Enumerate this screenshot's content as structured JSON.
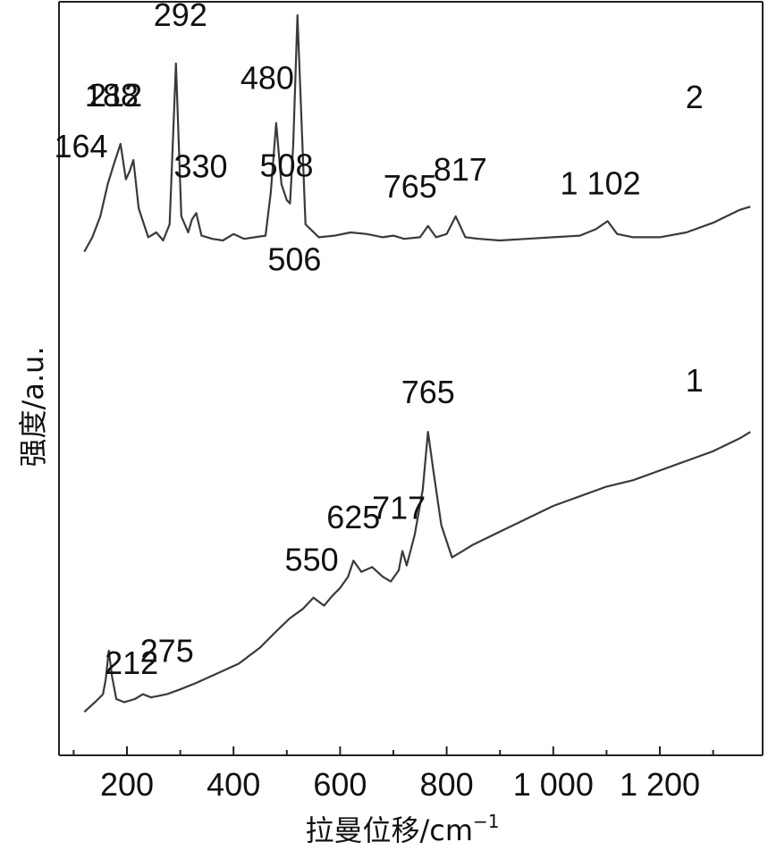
{
  "chart_data": {
    "type": "line",
    "title": "",
    "xlabel": "拉曼位移/cm",
    "xlabel_sup": "−1",
    "ylabel": "强度/a.u.",
    "xlim": [
      100,
      1370
    ],
    "x_ticks": [
      200,
      400,
      600,
      800,
      1000,
      1200
    ],
    "x_tick_labels": [
      "200",
      "400",
      "600",
      "800",
      "1 000",
      "1 200"
    ],
    "grid": false,
    "legend": "none",
    "line_color": "#3a3a3a",
    "series": [
      {
        "curve_label": "1",
        "x": [
          120,
          140,
          155,
          160,
          166,
          172,
          180,
          195,
          215,
          230,
          245,
          260,
          275,
          300,
          330,
          370,
          410,
          450,
          480,
          505,
          530,
          550,
          570,
          585,
          600,
          615,
          625,
          640,
          660,
          680,
          695,
          710,
          717,
          725,
          740,
          755,
          765,
          775,
          790,
          810,
          830,
          850,
          900,
          950,
          1000,
          1050,
          1100,
          1150,
          1200,
          1250,
          1300,
          1350,
          1370
        ],
        "y": [
          0.02,
          0.08,
          0.13,
          0.22,
          0.4,
          0.24,
          0.1,
          0.08,
          0.1,
          0.13,
          0.11,
          0.12,
          0.13,
          0.16,
          0.2,
          0.26,
          0.32,
          0.42,
          0.52,
          0.6,
          0.66,
          0.73,
          0.68,
          0.74,
          0.79,
          0.86,
          0.96,
          0.89,
          0.92,
          0.86,
          0.83,
          0.9,
          1.02,
          0.93,
          1.12,
          1.4,
          1.76,
          1.52,
          1.18,
          0.98,
          1.02,
          1.06,
          1.14,
          1.22,
          1.3,
          1.36,
          1.42,
          1.46,
          1.52,
          1.58,
          1.64,
          1.72,
          1.76
        ],
        "peak_labels": [
          {
            "x": 212,
            "text": "212"
          },
          {
            "x": 275,
            "text": "275"
          },
          {
            "x": 550,
            "text": "550"
          },
          {
            "x": 625,
            "text": "625"
          },
          {
            "x": 717,
            "text": "717"
          },
          {
            "x": 765,
            "text": "765"
          }
        ]
      },
      {
        "curve_label": "2",
        "x": [
          120,
          135,
          150,
          164,
          175,
          188,
          198,
          205,
          212,
          222,
          240,
          255,
          268,
          280,
          292,
          302,
          315,
          322,
          330,
          340,
          360,
          380,
          400,
          420,
          440,
          460,
          470,
          480,
          490,
          500,
          506,
          512,
          520,
          535,
          560,
          590,
          620,
          650,
          680,
          700,
          720,
          750,
          765,
          780,
          800,
          817,
          835,
          860,
          900,
          950,
          1000,
          1050,
          1080,
          1102,
          1120,
          1150,
          1200,
          1250,
          1300,
          1350,
          1370
        ],
        "y": [
          2.88,
          2.97,
          3.1,
          3.3,
          3.42,
          3.55,
          3.33,
          3.38,
          3.45,
          3.15,
          2.97,
          3.0,
          2.95,
          3.05,
          4.05,
          3.1,
          3.0,
          3.08,
          3.12,
          2.98,
          2.96,
          2.95,
          2.99,
          2.96,
          2.97,
          2.98,
          3.25,
          3.68,
          3.3,
          3.2,
          3.18,
          3.55,
          4.35,
          3.05,
          2.97,
          2.98,
          3.0,
          2.99,
          2.97,
          2.98,
          2.96,
          2.97,
          3.04,
          2.97,
          2.99,
          3.1,
          2.97,
          2.96,
          2.95,
          2.96,
          2.97,
          2.98,
          3.02,
          3.07,
          2.99,
          2.97,
          2.97,
          3.0,
          3.06,
          3.14,
          3.16
        ],
        "peak_labels": [
          {
            "x": 164,
            "text": "164"
          },
          {
            "x": 188,
            "text": "188"
          },
          {
            "x": 212,
            "text": "212"
          },
          {
            "x": 292,
            "text": "292"
          },
          {
            "x": 330,
            "text": "330"
          },
          {
            "x": 480,
            "text": "480"
          },
          {
            "x": 506,
            "text": "506"
          },
          {
            "x": 508,
            "text": "508"
          },
          {
            "x": 765,
            "text": "765"
          },
          {
            "x": 817,
            "text": "817"
          },
          {
            "x": 1102,
            "text": "1 102"
          }
        ]
      }
    ]
  }
}
